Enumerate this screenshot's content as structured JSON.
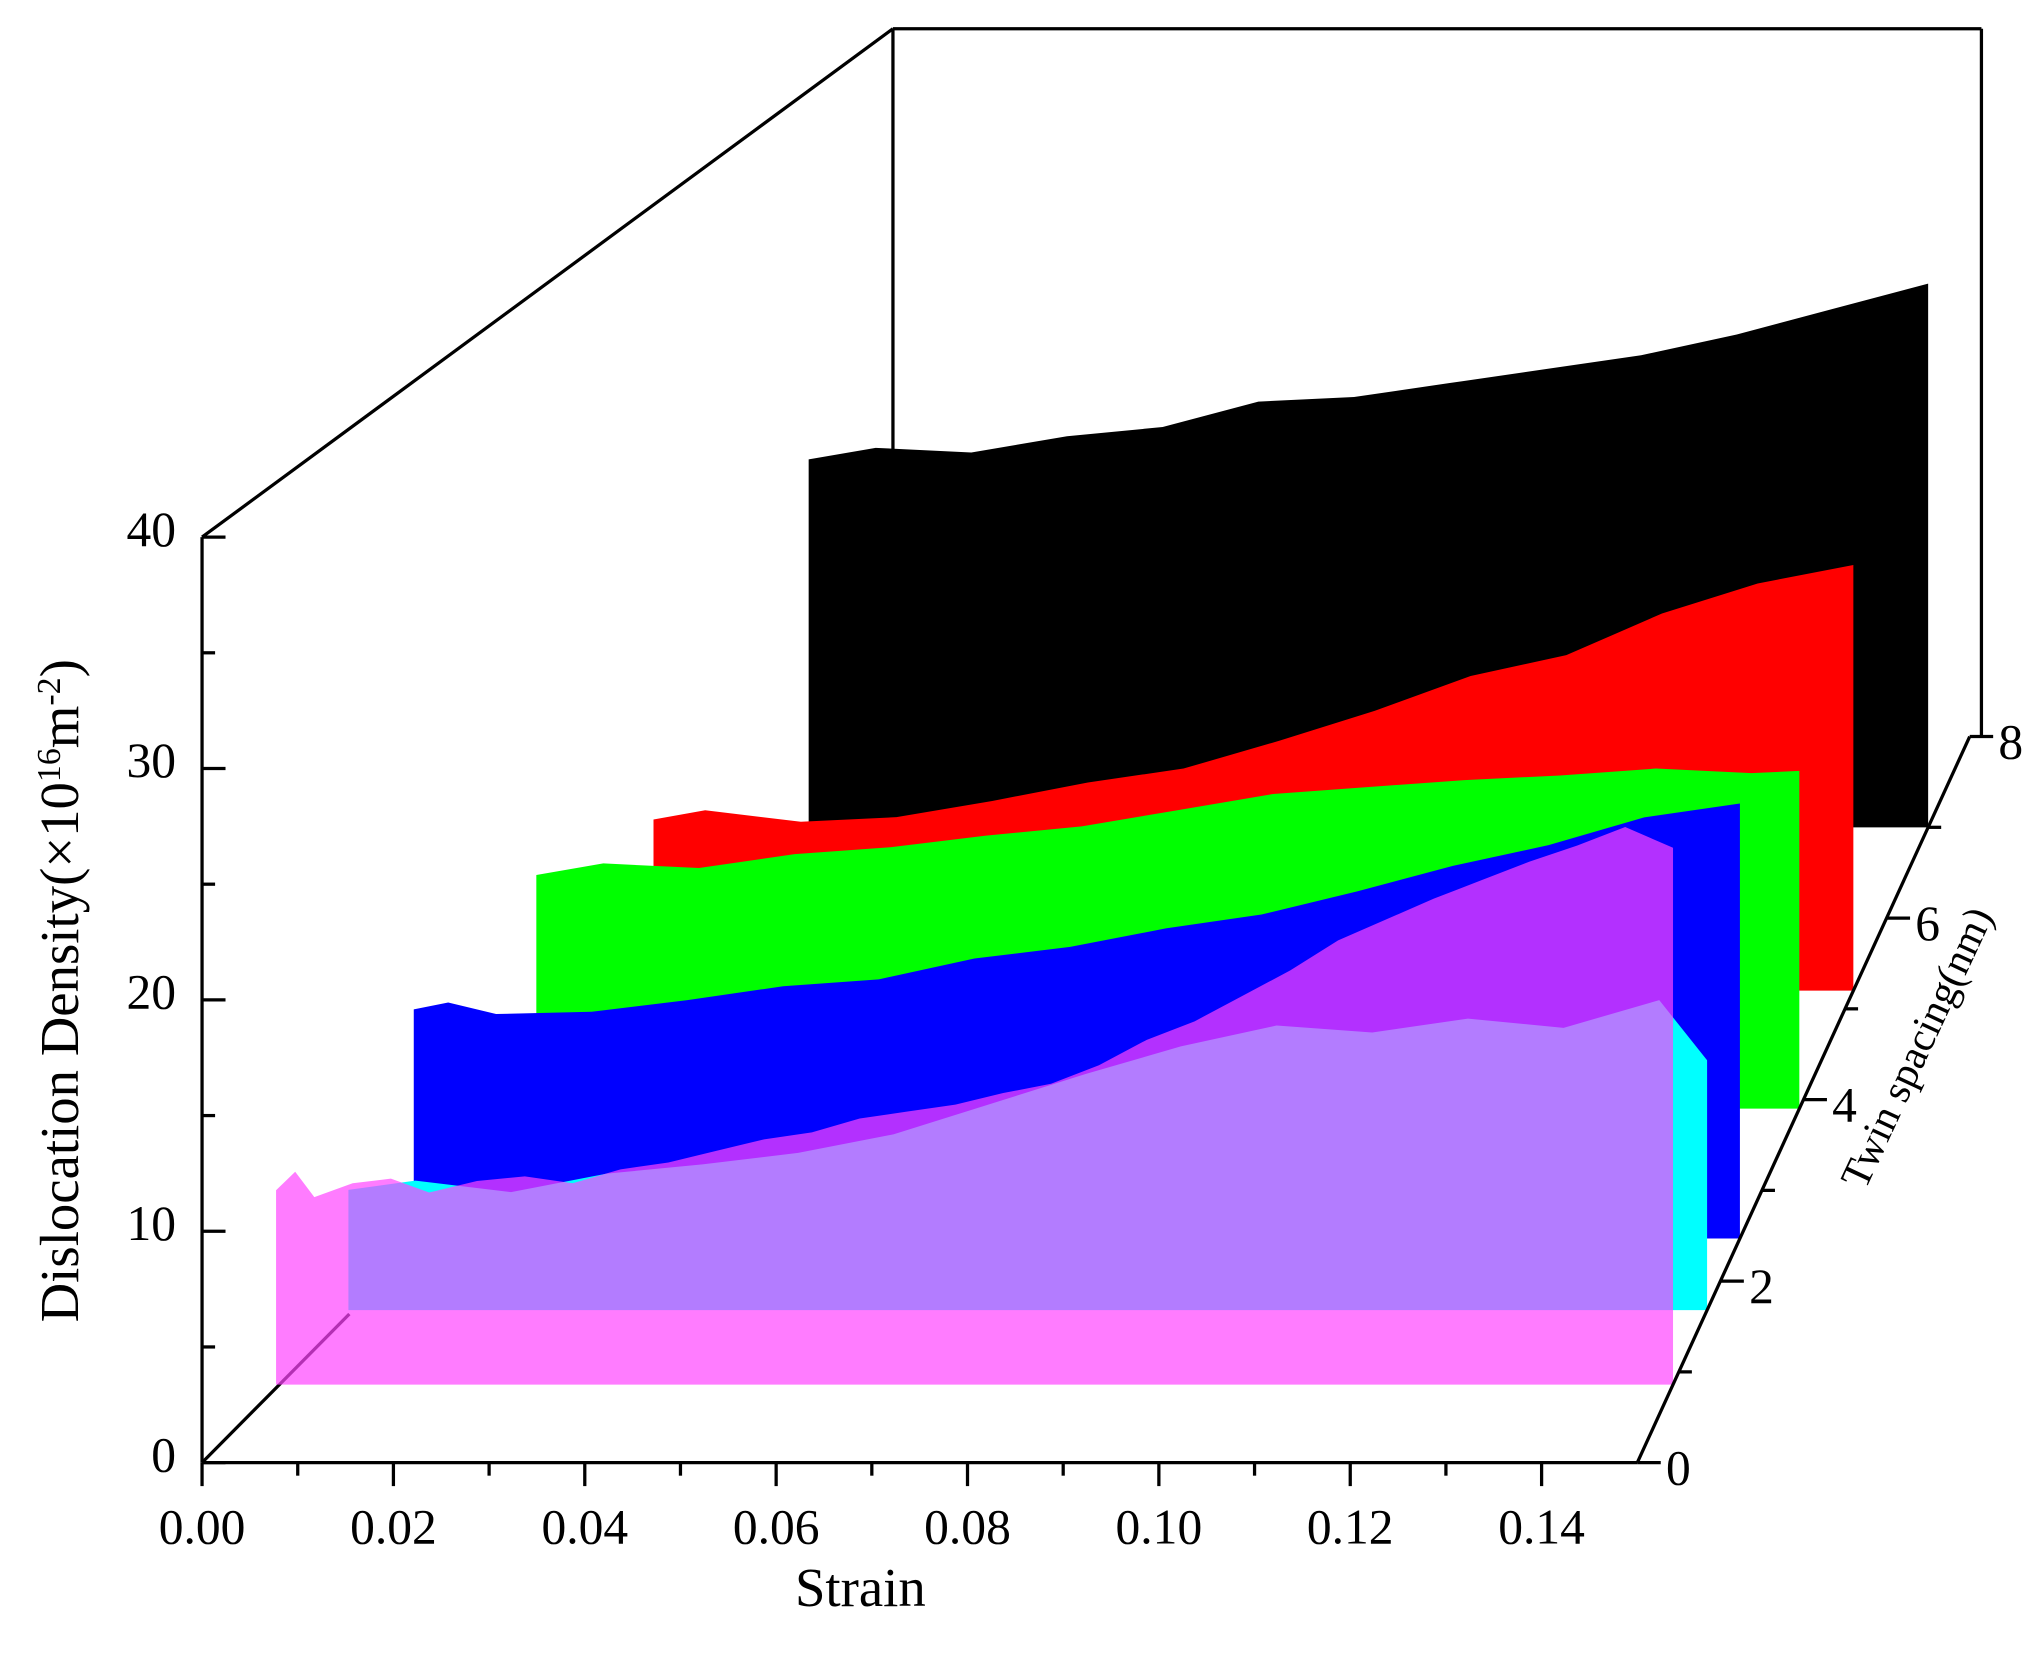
{
  "chart_data": {
    "type": "waterfall3d",
    "x_label": "Strain",
    "y_label_parts": [
      "Dislocation Density(×10",
      "16",
      "m",
      "-2",
      ")"
    ],
    "z_label": "Twin spacing(nm)",
    "xlim": [
      0,
      0.15
    ],
    "ylim": [
      0,
      40
    ],
    "zlim": [
      0,
      8
    ],
    "xticks": [
      {
        "value": 0,
        "label": "0.00"
      },
      {
        "value": 0.02,
        "label": "0.02"
      },
      {
        "value": 0.04,
        "label": "0.04"
      },
      {
        "value": 0.06,
        "label": "0.06"
      },
      {
        "value": 0.08,
        "label": "0.08"
      },
      {
        "value": 0.1,
        "label": "0.10"
      },
      {
        "value": 0.12,
        "label": "0.12"
      },
      {
        "value": 0.14,
        "label": "0.14"
      }
    ],
    "xticks_minor": [
      0.01,
      0.03,
      0.05,
      0.07,
      0.09,
      0.11,
      0.13
    ],
    "yticks": [
      0,
      10,
      20,
      30,
      40
    ],
    "yticks_minor": [
      5,
      15,
      25,
      35
    ],
    "zticks": [
      0,
      2,
      4,
      6,
      8
    ],
    "zticks_minor": [
      1,
      3,
      5,
      7
    ],
    "series": [
      {
        "color": "#000000",
        "z": 7.0,
        "x": [
          0.033,
          0.04,
          0.05,
          0.06,
          0.07,
          0.08,
          0.09,
          0.1,
          0.11,
          0.12,
          0.13,
          0.14,
          0.15
        ],
        "values": [
          15.9,
          16.4,
          16.2,
          16.9,
          17.3,
          18.4,
          18.6,
          19.2,
          19.8,
          20.4,
          21.3,
          22.4,
          23.5
        ]
      },
      {
        "color": "#ff0000",
        "z": 5.2,
        "x": [
          0.0246,
          0.03,
          0.04,
          0.05,
          0.06,
          0.07,
          0.08,
          0.09,
          0.1,
          0.11,
          0.12,
          0.13,
          0.14,
          0.15
        ],
        "values": [
          7.4,
          7.8,
          7.3,
          7.5,
          8.2,
          9.0,
          9.6,
          10.8,
          12.1,
          13.6,
          14.5,
          16.3,
          17.6,
          18.4
        ]
      },
      {
        "color": "#00ff00",
        "z": 3.9,
        "x": [
          0.018,
          0.025,
          0.035,
          0.045,
          0.055,
          0.065,
          0.075,
          0.085,
          0.095,
          0.105,
          0.115,
          0.125,
          0.135,
          0.145,
          0.15
        ],
        "values": [
          10.1,
          10.6,
          10.4,
          11.0,
          11.3,
          11.8,
          12.2,
          12.9,
          13.6,
          13.9,
          14.2,
          14.4,
          14.7,
          14.5,
          14.6
        ]
      },
      {
        "color": "#0000ff",
        "z": 2.47,
        "x": [
          0.0114,
          0.015,
          0.02,
          0.03,
          0.04,
          0.05,
          0.06,
          0.07,
          0.08,
          0.09,
          0.1,
          0.11,
          0.12,
          0.13,
          0.14,
          0.15
        ],
        "values": [
          9.9,
          10.2,
          9.7,
          9.8,
          10.3,
          10.9,
          11.2,
          12.1,
          12.6,
          13.4,
          14.0,
          15.0,
          16.1,
          17.0,
          18.2,
          18.8
        ]
      },
      {
        "color": "#00ffff",
        "z": 1.68,
        "x": [
          0.008,
          0.015,
          0.025,
          0.035,
          0.045,
          0.055,
          0.065,
          0.075,
          0.085,
          0.095,
          0.105,
          0.115,
          0.125,
          0.135,
          0.145,
          0.15
        ],
        "values": [
          5.2,
          5.6,
          5.1,
          5.9,
          6.3,
          6.8,
          7.6,
          8.9,
          10.2,
          11.4,
          12.3,
          12.0,
          12.6,
          12.2,
          13.4,
          10.8
        ]
      },
      {
        "color": "#ff44ff",
        "alpha": 0.7,
        "z": 0.86,
        "x": [
          0.004,
          0.006,
          0.008,
          0.012,
          0.016,
          0.02,
          0.025,
          0.03,
          0.035,
          0.04,
          0.045,
          0.05,
          0.055,
          0.06,
          0.065,
          0.07,
          0.075,
          0.08,
          0.085,
          0.09,
          0.095,
          0.1,
          0.105,
          0.11,
          0.115,
          0.12,
          0.125,
          0.13,
          0.135,
          0.14,
          0.145,
          0.15
        ],
        "values": [
          8.4,
          9.2,
          8.1,
          8.7,
          8.9,
          8.3,
          8.8,
          9.0,
          8.7,
          9.3,
          9.6,
          10.1,
          10.6,
          10.9,
          11.5,
          11.8,
          12.1,
          12.6,
          13.0,
          13.8,
          14.9,
          15.7,
          16.8,
          17.9,
          19.2,
          20.1,
          21.0,
          21.8,
          22.6,
          23.3,
          24.1,
          23.2
        ]
      }
    ]
  }
}
